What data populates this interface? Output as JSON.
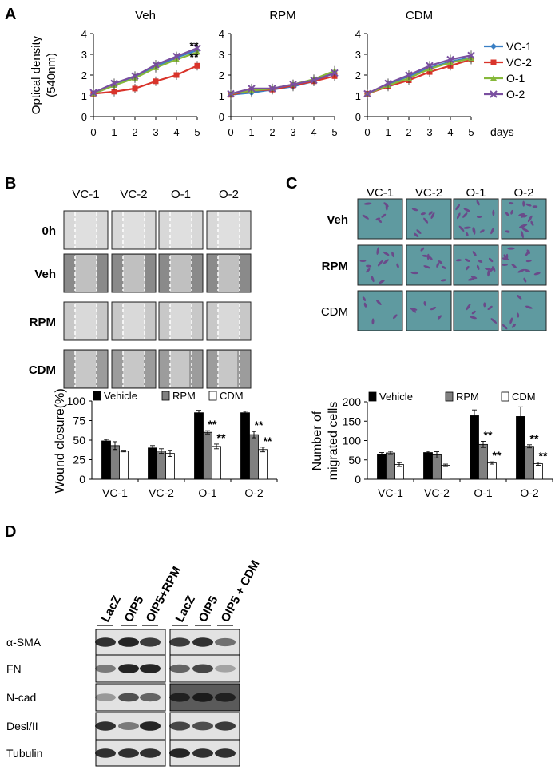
{
  "panel_letters": [
    "A",
    "B",
    "C",
    "D"
  ],
  "colors": {
    "vc1": "#3a7fc4",
    "vc2": "#d9342b",
    "o1": "#86b83a",
    "o2": "#7a4fa0",
    "bar_vehicle": "#000000",
    "bar_rpm": "#808080",
    "bar_cdm": "#ffffff"
  },
  "chart_data": [
    {
      "id": "A",
      "type": "line",
      "ylabel": "Optical density (540nm)",
      "ylabel_lines": [
        "Optical density",
        "(540nm)"
      ],
      "xlabel": "days",
      "x": [
        0,
        1,
        2,
        3,
        4,
        5
      ],
      "ylim": [
        0,
        4
      ],
      "yticks": [
        0,
        1,
        2,
        3,
        4
      ],
      "legend": {
        "position": "right",
        "entries": [
          "VC-1",
          "VC-2",
          "O-1",
          "O-2"
        ]
      },
      "subplots": [
        {
          "title": "Veh",
          "annotation": [
            "**",
            "**"
          ],
          "series": [
            {
              "name": "VC-1",
              "values": [
                1.1,
                1.5,
                1.9,
                2.4,
                2.85,
                3.2
              ]
            },
            {
              "name": "VC-2",
              "values": [
                1.1,
                1.2,
                1.35,
                1.7,
                2.0,
                2.45
              ]
            },
            {
              "name": "O-1",
              "values": [
                1.1,
                1.5,
                1.85,
                2.35,
                2.75,
                3.1
              ]
            },
            {
              "name": "O-2",
              "values": [
                1.15,
                1.6,
                1.95,
                2.5,
                2.9,
                3.3
              ]
            }
          ]
        },
        {
          "title": "RPM",
          "series": [
            {
              "name": "VC-1",
              "values": [
                1.05,
                1.15,
                1.3,
                1.45,
                1.7,
                2.1
              ]
            },
            {
              "name": "VC-2",
              "values": [
                1.05,
                1.25,
                1.3,
                1.5,
                1.7,
                1.95
              ]
            },
            {
              "name": "O-1",
              "values": [
                1.1,
                1.25,
                1.35,
                1.55,
                1.8,
                2.2
              ]
            },
            {
              "name": "O-2",
              "values": [
                1.1,
                1.35,
                1.35,
                1.55,
                1.75,
                2.1
              ]
            }
          ]
        },
        {
          "title": "CDM",
          "series": [
            {
              "name": "VC-1",
              "values": [
                1.1,
                1.55,
                1.95,
                2.35,
                2.65,
                2.85
              ]
            },
            {
              "name": "VC-2",
              "values": [
                1.1,
                1.45,
                1.75,
                2.15,
                2.45,
                2.75
              ]
            },
            {
              "name": "O-1",
              "values": [
                1.1,
                1.5,
                1.85,
                2.3,
                2.6,
                2.8
              ]
            },
            {
              "name": "O-2",
              "values": [
                1.1,
                1.6,
                2.0,
                2.45,
                2.75,
                2.95
              ]
            }
          ]
        }
      ]
    },
    {
      "id": "B",
      "type": "bar",
      "ylabel": "Wound closure(%)",
      "ylim": [
        0,
        100
      ],
      "yticks": [
        0,
        25,
        50,
        75,
        100
      ],
      "categories": [
        "VC-1",
        "VC-2",
        "O-1",
        "O-2"
      ],
      "legend": {
        "position": "top",
        "entries": [
          "Vehicle",
          "RPM",
          "CDM"
        ]
      },
      "series": [
        {
          "name": "Vehicle",
          "values": [
            49,
            40,
            85,
            85
          ],
          "errors": [
            2,
            3,
            3,
            2
          ]
        },
        {
          "name": "RPM",
          "values": [
            43,
            36,
            60,
            57
          ],
          "errors": [
            5,
            3,
            2,
            4
          ],
          "marks": [
            "",
            "",
            "**",
            "**"
          ]
        },
        {
          "name": "CDM",
          "values": [
            36,
            33,
            42,
            38
          ],
          "errors": [
            1,
            4,
            3,
            3
          ],
          "marks": [
            "",
            "",
            "**",
            "**"
          ]
        }
      ]
    },
    {
      "id": "C",
      "type": "bar",
      "ylabel": "Number of migrated cells",
      "ylabel_lines": [
        "Number of",
        "migrated cells"
      ],
      "ylim": [
        0,
        200
      ],
      "yticks": [
        0,
        50,
        100,
        150,
        200
      ],
      "categories": [
        "VC-1",
        "VC-2",
        "O-1",
        "O-2"
      ],
      "legend": {
        "position": "top",
        "entries": [
          "Vehicle",
          "RPM",
          "CDM"
        ]
      },
      "series": [
        {
          "name": "Vehicle",
          "values": [
            64,
            69,
            164,
            162
          ],
          "errors": [
            5,
            3,
            15,
            25
          ]
        },
        {
          "name": "RPM",
          "values": [
            68,
            63,
            90,
            85
          ],
          "errors": [
            4,
            8,
            8,
            4
          ],
          "marks": [
            "",
            "",
            "**",
            "**"
          ]
        },
        {
          "name": "CDM",
          "values": [
            38,
            36,
            42,
            40
          ],
          "errors": [
            5,
            3,
            3,
            4
          ],
          "marks": [
            "",
            "",
            "**",
            "**"
          ]
        }
      ]
    }
  ],
  "panel_b_images": {
    "columns": [
      "VC-1",
      "VC-2",
      "O-1",
      "O-2"
    ],
    "rows": [
      "0h",
      "Veh",
      "RPM",
      "CDM"
    ]
  },
  "panel_c_images": {
    "columns": [
      "VC-1",
      "VC-2",
      "O-1",
      "O-2"
    ],
    "rows": [
      "Veh",
      "RPM",
      "CDM"
    ],
    "density": [
      [
        0.4,
        0.4,
        0.8,
        0.9
      ],
      [
        0.6,
        0.6,
        0.7,
        0.7
      ],
      [
        0.3,
        0.3,
        0.35,
        0.35
      ]
    ]
  },
  "panel_d_blot": {
    "lanes_left": [
      "LacZ",
      "OIP5",
      "OIP5+RPM"
    ],
    "lanes_right": [
      "LacZ",
      "OIP5",
      "OIP5 + CDM"
    ],
    "proteins": [
      "α-SMA",
      "FN",
      "N-cad",
      "Desl/II",
      "Tubulin"
    ],
    "intensity_left": [
      [
        0.85,
        0.9,
        0.8
      ],
      [
        0.5,
        0.9,
        0.9
      ],
      [
        0.35,
        0.7,
        0.6
      ],
      [
        0.85,
        0.5,
        0.9
      ],
      [
        0.85,
        0.85,
        0.85
      ]
    ],
    "intensity_right": [
      [
        0.8,
        0.85,
        0.55
      ],
      [
        0.6,
        0.75,
        0.3
      ],
      [
        0.8,
        0.85,
        0.8
      ],
      [
        0.75,
        0.7,
        0.8
      ],
      [
        0.9,
        0.85,
        0.85
      ]
    ]
  }
}
